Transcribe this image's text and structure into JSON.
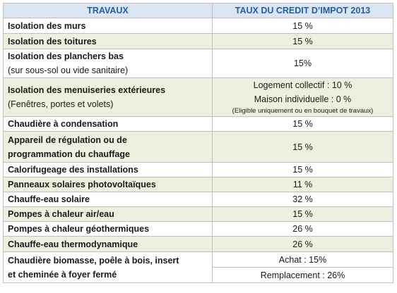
{
  "table": {
    "header": [
      "TRAVAUX",
      "TAUX DU CREDIT D’IMPOT 2013"
    ],
    "rows": [
      {
        "travaux": [
          "Isolation des murs"
        ],
        "taux": [
          "15 %"
        ]
      },
      {
        "travaux": [
          "Isolation des toitures"
        ],
        "taux": [
          "15 %"
        ]
      },
      {
        "travaux": [
          "Isolation des planchers bas",
          "(sur sous-sol ou vide sanitaire)"
        ],
        "taux": [
          "15%"
        ]
      },
      {
        "travaux": [
          "Isolation des menuiseries extérieures",
          "(Fenêtres, portes et volets)"
        ],
        "taux": [
          "Logement collectif : 10 %",
          "Maison individuelle : 0 %",
          "(Eligible uniquement ou en bouquet de travaux)"
        ]
      },
      {
        "travaux": [
          "Chaudière à condensation"
        ],
        "taux": [
          "15 %"
        ]
      },
      {
        "travaux": [
          "Appareil de régulation ou de",
          "programmation du chauffage"
        ],
        "taux": [
          "15 %"
        ]
      },
      {
        "travaux": [
          "Calorifugeage des installations"
        ],
        "taux": [
          "15 %"
        ]
      },
      {
        "travaux": [
          "Panneaux solaires photovoltaïques"
        ],
        "taux": [
          "11 %"
        ]
      },
      {
        "travaux": [
          "Chauffe-eau solaire"
        ],
        "taux": [
          "32 %"
        ]
      },
      {
        "travaux": [
          "Pompes à chaleur air/eau"
        ],
        "taux": [
          "15 %"
        ]
      },
      {
        "travaux": [
          "Pompes à chaleur géothermiques"
        ],
        "taux": [
          "26 %"
        ]
      },
      {
        "travaux": [
          "Chauffe-eau thermodynamique"
        ],
        "taux": [
          "26 %"
        ]
      },
      {
        "travaux": [
          "Chaudière biomasse, poêle à bois, insert",
          "et cheminée à foyer fermé"
        ],
        "taux": [
          "Achat : 15%",
          "Remplacement : 26%"
        ]
      }
    ]
  }
}
